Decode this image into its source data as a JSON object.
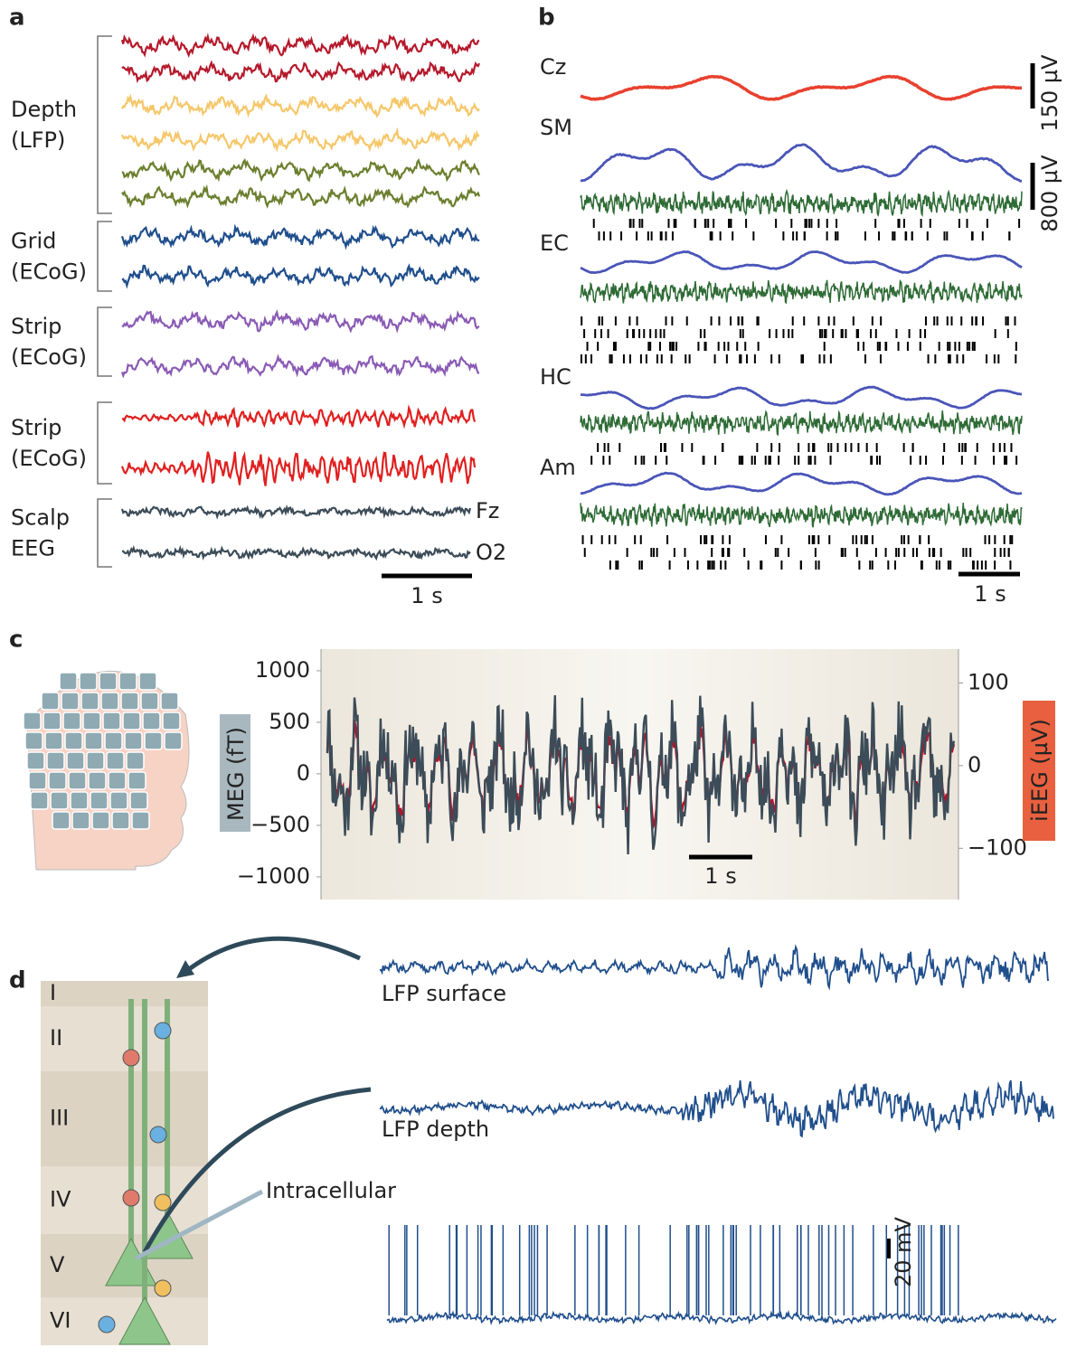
{
  "panel_a": {
    "label": "a",
    "groups": [
      {
        "lines": [
          "Depth",
          "(LFP)"
        ],
        "colors": [
          "#b5192b",
          "#b5192b",
          "#f5c76a",
          "#f5c76a",
          "#6b7f2e",
          "#6b7f2e"
        ]
      },
      {
        "lines": [
          "Grid",
          "(ECoG)"
        ],
        "colors": [
          "#1f4e8c",
          "#1f4e8c"
        ]
      },
      {
        "lines": [
          "Strip",
          "(ECoG)"
        ],
        "colors": [
          "#8a5bb5",
          "#8a5bb5"
        ]
      },
      {
        "lines": [
          "Strip",
          "(ECoG)"
        ],
        "colors": [
          "#e02020",
          "#e02020"
        ]
      },
      {
        "lines": [
          "Scalp",
          "EEG"
        ],
        "colors": [
          "#3c4c58",
          "#3c4c58"
        ]
      }
    ],
    "channels": [
      "Fz",
      "O2"
    ],
    "scale": "1 s"
  },
  "panel_b": {
    "label": "b",
    "channels": [
      "Cz",
      "SM",
      "EC",
      "HC",
      "Am"
    ],
    "scales": [
      "150 µV",
      "800 µV"
    ],
    "time_scale": "1 s",
    "colors": {
      "eeg": "#e8412f",
      "lfp": "#4a55b8",
      "unit": "#2e6b35"
    }
  },
  "panel_c": {
    "label": "c",
    "chart_data": {
      "type": "line",
      "ylabel": "MEG (fT)",
      "y2label": "iEEG (µV)",
      "ylim": [
        -1220,
        1210
      ],
      "yticks": [
        {
          "value": -1000,
          "label": "−1000"
        },
        {
          "value": -500,
          "label": "−500"
        },
        0,
        500,
        1000
      ],
      "y2lim": [
        -162,
        141
      ],
      "y2ticks": [
        {
          "value": -100,
          "label": "−100"
        },
        0,
        100
      ],
      "series_colors": [
        "#b0142a",
        "#3c4c58"
      ],
      "scale": "1 s"
    }
  },
  "panel_d": {
    "label": "d",
    "layers": [
      "I",
      "II",
      "III",
      "IV",
      "V",
      "VI"
    ],
    "traces": [
      "LFP surface",
      "LFP depth"
    ],
    "intracellular": "Intracellular",
    "scale": "20 mV"
  }
}
